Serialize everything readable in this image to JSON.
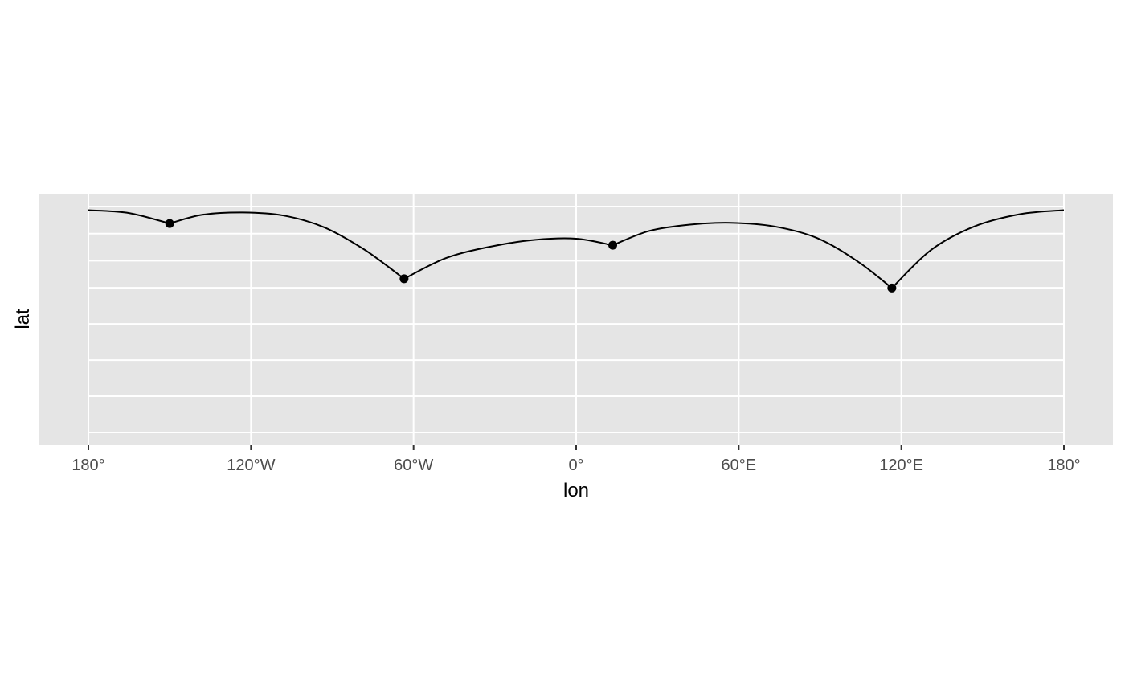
{
  "chart_data": {
    "type": "line",
    "xlabel": "lon",
    "ylabel": "lat",
    "xlim": [
      -180,
      180
    ],
    "x_ticks": [
      {
        "value": -180,
        "label": "180°"
      },
      {
        "value": -120,
        "label": "120°W"
      },
      {
        "value": -60,
        "label": "60°W"
      },
      {
        "value": 0,
        "label": "0°"
      },
      {
        "value": 60,
        "label": "60°E"
      },
      {
        "value": 120,
        "label": "120°E"
      },
      {
        "value": 180,
        "label": "180°"
      }
    ],
    "y_gridlines": [
      85,
      70,
      55,
      40,
      20,
      0,
      -20,
      -40
    ],
    "ylim": [
      -44,
      89
    ],
    "points": [
      {
        "lon": -150,
        "lat": 75.6
      },
      {
        "lon": -63.5,
        "lat": 45
      },
      {
        "lon": 13.5,
        "lat": 63.6
      },
      {
        "lon": 116.5,
        "lat": 39.9
      }
    ],
    "route": [
      {
        "lon": -180,
        "lat": 83.0
      },
      {
        "lon": -165,
        "lat": 81.4
      },
      {
        "lon": -150,
        "lat": 75.6
      },
      {
        "lon": -138,
        "lat": 80.4
      },
      {
        "lon": -123,
        "lat": 81.7
      },
      {
        "lon": -108,
        "lat": 80.0
      },
      {
        "lon": -93,
        "lat": 73.5
      },
      {
        "lon": -78,
        "lat": 61.0
      },
      {
        "lon": -63.5,
        "lat": 45
      },
      {
        "lon": -48,
        "lat": 56.5
      },
      {
        "lon": -31,
        "lat": 63.0
      },
      {
        "lon": -15,
        "lat": 66.6
      },
      {
        "lon": 0,
        "lat": 67.2
      },
      {
        "lon": 13.5,
        "lat": 63.6
      },
      {
        "lon": 27,
        "lat": 71.5
      },
      {
        "lon": 42,
        "lat": 75.0
      },
      {
        "lon": 57,
        "lat": 76.0
      },
      {
        "lon": 73,
        "lat": 74.0
      },
      {
        "lon": 89,
        "lat": 67.5
      },
      {
        "lon": 104,
        "lat": 54.5
      },
      {
        "lon": 116.5,
        "lat": 39.9
      },
      {
        "lon": 131,
        "lat": 61.0
      },
      {
        "lon": 147,
        "lat": 74.0
      },
      {
        "lon": 164,
        "lat": 80.8
      },
      {
        "lon": 180,
        "lat": 83.0
      }
    ],
    "grid": true,
    "legend": "none",
    "colors": {
      "panel": "#e5e5e5",
      "grid": "#ffffff",
      "line": "#000000",
      "tick_text": "#4d4d4d",
      "title_text": "#000000"
    }
  }
}
